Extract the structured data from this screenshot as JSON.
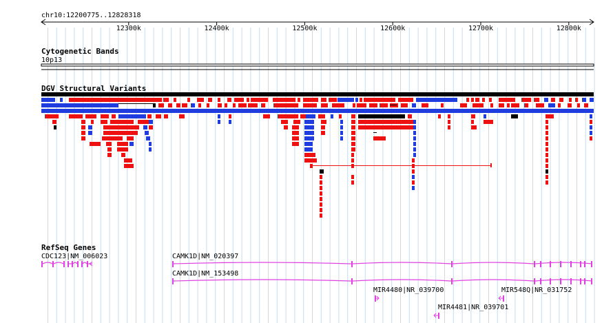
{
  "ruler": {
    "region_label": "chr10:12200775..12828318",
    "start_bp": 12200775,
    "end_bp": 12828318,
    "ticks": [
      {
        "bp": 12300000,
        "label": "12300k"
      },
      {
        "bp": 12400000,
        "label": "12400k"
      },
      {
        "bp": 12500000,
        "label": "12500k"
      },
      {
        "bp": 12600000,
        "label": "12600k"
      },
      {
        "bp": 12700000,
        "label": "12700k"
      },
      {
        "bp": 12800000,
        "label": "12800k"
      }
    ]
  },
  "tracks": {
    "cytoband": {
      "title": "Cytogenetic Bands",
      "band": "10p13"
    },
    "dgv": {
      "title": "DGV Structural Variants"
    },
    "refseq": {
      "title": "RefSeq Genes"
    }
  },
  "genes": [
    {
      "label": "CDC123|NM_006023",
      "color": "#e040e0"
    },
    {
      "label": "CAMK1D|NM_020397",
      "color": "#e040e0"
    },
    {
      "label": "CAMK1D|NM_153498",
      "color": "#e040e0"
    },
    {
      "label": "MIR4480|NR_039700",
      "color": "#e040e0"
    },
    {
      "label": "MIR548Q|NR_031752",
      "color": "#e040e0"
    },
    {
      "label": "MIR4481|NR_039701",
      "color": "#e040e0"
    }
  ],
  "colors": {
    "gain": "#ee1111",
    "loss": "#1f3ddf",
    "gain_loss": "#000000",
    "gene": "#e040e0",
    "grid": "#c8dcea"
  }
}
